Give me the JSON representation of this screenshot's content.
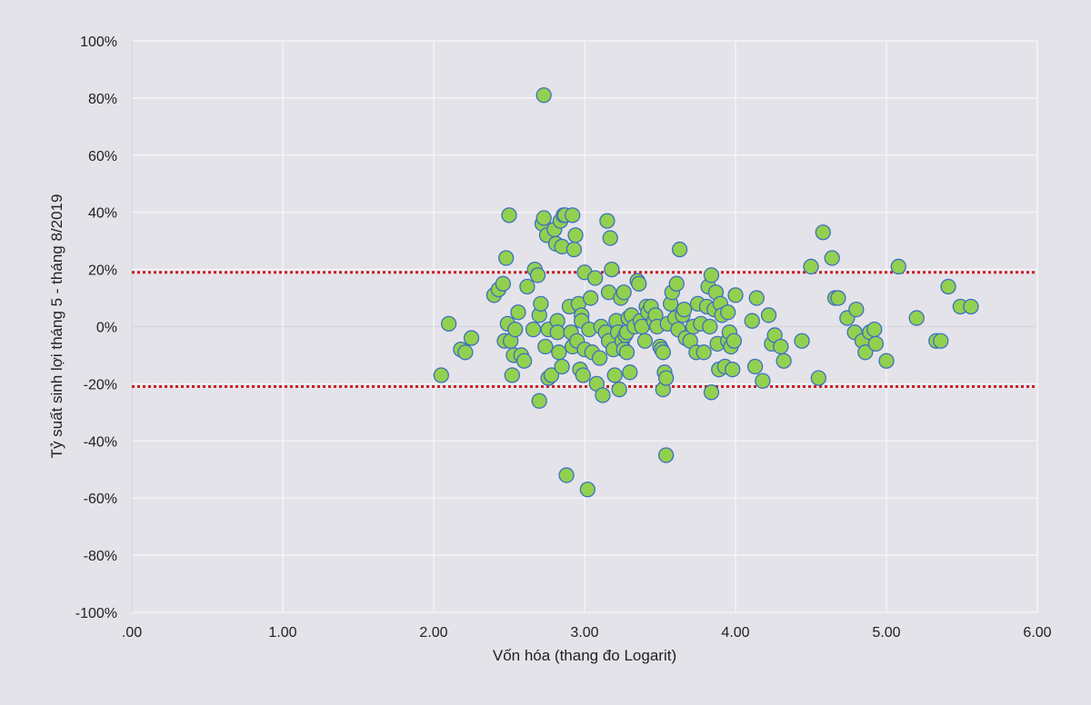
{
  "chart_data": {
    "type": "scatter",
    "xlabel": "Vốn hóa (thang đo Logarit)",
    "ylabel": "Tỷ suất sinh lợi tháng 5 - tháng 8/2019",
    "xlim": [
      0,
      6
    ],
    "ylim": [
      -100,
      100
    ],
    "x_ticks": [
      ".00",
      "1.00",
      "2.00",
      "3.00",
      "4.00",
      "5.00",
      "6.00"
    ],
    "y_ticks": [
      "100%",
      "80%",
      "60%",
      "40%",
      "20%",
      "0%",
      "-20%",
      "-40%",
      "-60%",
      "-80%",
      "-100%"
    ],
    "grid": true,
    "reference_lines": [
      {
        "y": 19,
        "color": "#cc1f1f",
        "style": "dotted"
      },
      {
        "y": -21,
        "color": "#cc1f1f",
        "style": "dotted"
      }
    ],
    "marker_fill": "#92d050",
    "marker_edge": "#3e6fbf",
    "points": [
      [
        2.05,
        -17
      ],
      [
        2.1,
        1
      ],
      [
        2.18,
        -8
      ],
      [
        2.21,
        -9
      ],
      [
        2.25,
        -4
      ],
      [
        2.4,
        11
      ],
      [
        2.43,
        13
      ],
      [
        2.46,
        15
      ],
      [
        2.47,
        -5
      ],
      [
        2.48,
        24
      ],
      [
        2.49,
        1
      ],
      [
        2.5,
        39
      ],
      [
        2.51,
        -5
      ],
      [
        2.52,
        -17
      ],
      [
        2.53,
        -10
      ],
      [
        2.54,
        -1
      ],
      [
        2.56,
        5
      ],
      [
        2.58,
        -10
      ],
      [
        2.6,
        -12
      ],
      [
        2.62,
        14
      ],
      [
        2.66,
        -1
      ],
      [
        2.67,
        20
      ],
      [
        2.69,
        18
      ],
      [
        2.7,
        -26
      ],
      [
        2.7,
        4
      ],
      [
        2.71,
        8
      ],
      [
        2.72,
        36
      ],
      [
        2.73,
        38
      ],
      [
        2.73,
        81
      ],
      [
        2.74,
        -7
      ],
      [
        2.75,
        32
      ],
      [
        2.76,
        -1
      ],
      [
        2.76,
        -18
      ],
      [
        2.78,
        -17
      ],
      [
        2.8,
        34
      ],
      [
        2.81,
        29
      ],
      [
        2.82,
        2
      ],
      [
        2.82,
        -2
      ],
      [
        2.83,
        -9
      ],
      [
        2.84,
        37
      ],
      [
        2.85,
        28
      ],
      [
        2.85,
        -14
      ],
      [
        2.86,
        39
      ],
      [
        2.87,
        39
      ],
      [
        2.88,
        -52
      ],
      [
        2.9,
        7
      ],
      [
        2.91,
        -2
      ],
      [
        2.92,
        39
      ],
      [
        2.92,
        -7
      ],
      [
        2.93,
        27
      ],
      [
        2.94,
        32
      ],
      [
        2.95,
        -5
      ],
      [
        2.96,
        8
      ],
      [
        2.97,
        -15
      ],
      [
        2.98,
        4
      ],
      [
        2.98,
        2
      ],
      [
        2.99,
        -17
      ],
      [
        3.0,
        19
      ],
      [
        3.0,
        -8
      ],
      [
        3.02,
        -57
      ],
      [
        3.03,
        -1
      ],
      [
        3.04,
        10
      ],
      [
        3.05,
        -9
      ],
      [
        3.07,
        17
      ],
      [
        3.08,
        -20
      ],
      [
        3.1,
        -11
      ],
      [
        3.11,
        0
      ],
      [
        3.12,
        -24
      ],
      [
        3.14,
        -2
      ],
      [
        3.15,
        37
      ],
      [
        3.16,
        12
      ],
      [
        3.16,
        -5
      ],
      [
        3.17,
        31
      ],
      [
        3.18,
        20
      ],
      [
        3.19,
        -8
      ],
      [
        3.2,
        -17
      ],
      [
        3.21,
        2
      ],
      [
        3.22,
        -2
      ],
      [
        3.23,
        -22
      ],
      [
        3.24,
        10
      ],
      [
        3.25,
        -5
      ],
      [
        3.26,
        12
      ],
      [
        3.26,
        -8
      ],
      [
        3.27,
        -3
      ],
      [
        3.28,
        -9
      ],
      [
        3.28,
        -2
      ],
      [
        3.29,
        3
      ],
      [
        3.3,
        -16
      ],
      [
        3.31,
        4
      ],
      [
        3.33,
        0
      ],
      [
        3.35,
        16
      ],
      [
        3.36,
        15
      ],
      [
        3.37,
        2
      ],
      [
        3.38,
        0
      ],
      [
        3.4,
        -5
      ],
      [
        3.41,
        7
      ],
      [
        3.42,
        5
      ],
      [
        3.44,
        7
      ],
      [
        3.46,
        2
      ],
      [
        3.47,
        4
      ],
      [
        3.48,
        0
      ],
      [
        3.5,
        -7
      ],
      [
        3.51,
        -8
      ],
      [
        3.52,
        -9
      ],
      [
        3.52,
        -22
      ],
      [
        3.53,
        -16
      ],
      [
        3.54,
        -45
      ],
      [
        3.54,
        -18
      ],
      [
        3.55,
        1
      ],
      [
        3.57,
        8
      ],
      [
        3.58,
        12
      ],
      [
        3.6,
        3
      ],
      [
        3.61,
        15
      ],
      [
        3.62,
        -1
      ],
      [
        3.63,
        27
      ],
      [
        3.65,
        4
      ],
      [
        3.66,
        6
      ],
      [
        3.67,
        -4
      ],
      [
        3.7,
        -5
      ],
      [
        3.72,
        0
      ],
      [
        3.74,
        -9
      ],
      [
        3.75,
        8
      ],
      [
        3.77,
        1
      ],
      [
        3.79,
        -9
      ],
      [
        3.81,
        7
      ],
      [
        3.82,
        14
      ],
      [
        3.83,
        0
      ],
      [
        3.84,
        -23
      ],
      [
        3.84,
        18
      ],
      [
        3.86,
        6
      ],
      [
        3.87,
        12
      ],
      [
        3.88,
        -6
      ],
      [
        3.89,
        -15
      ],
      [
        3.9,
        8
      ],
      [
        3.91,
        4
      ],
      [
        3.93,
        -14
      ],
      [
        3.95,
        5
      ],
      [
        3.95,
        -5
      ],
      [
        3.96,
        -2
      ],
      [
        3.97,
        -7
      ],
      [
        3.98,
        -15
      ],
      [
        3.99,
        -5
      ],
      [
        4.0,
        11
      ],
      [
        4.11,
        2
      ],
      [
        4.13,
        -14
      ],
      [
        4.14,
        10
      ],
      [
        4.18,
        -19
      ],
      [
        4.22,
        4
      ],
      [
        4.24,
        -6
      ],
      [
        4.26,
        -3
      ],
      [
        4.3,
        -7
      ],
      [
        4.32,
        -12
      ],
      [
        4.44,
        -5
      ],
      [
        4.5,
        21
      ],
      [
        4.55,
        -18
      ],
      [
        4.58,
        33
      ],
      [
        4.64,
        24
      ],
      [
        4.66,
        10
      ],
      [
        4.68,
        10
      ],
      [
        4.74,
        3
      ],
      [
        4.79,
        -2
      ],
      [
        4.8,
        6
      ],
      [
        4.84,
        -5
      ],
      [
        4.86,
        -9
      ],
      [
        4.89,
        -2
      ],
      [
        4.92,
        -1
      ],
      [
        4.93,
        -6
      ],
      [
        5.0,
        -12
      ],
      [
        5.08,
        21
      ],
      [
        5.2,
        3
      ],
      [
        5.33,
        -5
      ],
      [
        5.36,
        -5
      ],
      [
        5.41,
        14
      ],
      [
        5.49,
        7
      ],
      [
        5.56,
        7
      ]
    ]
  }
}
